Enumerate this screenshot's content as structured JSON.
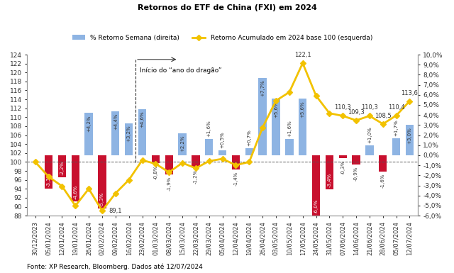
{
  "chart_data": {
    "type": "bar",
    "title": "Retornos do ETF de China (FXI) em 2024",
    "source": "Fonte: XP Research, Bloomberg. Dados até 12/07/2024",
    "annotations": [
      {
        "text": "Início do “ano do dragão”",
        "category": "23/02/2024"
      }
    ],
    "categories": [
      "30/12/2023",
      "05/01/2024",
      "12/01/2024",
      "19/01/2024",
      "26/01/2024",
      "02/02/2024",
      "09/02/2024",
      "16/02/2024",
      "23/02/2024",
      "01/03/2024",
      "08/03/2024",
      "15/03/2024",
      "22/03/2024",
      "29/03/2024",
      "05/04/2024",
      "12/04/2024",
      "19/04/2024",
      "26/04/2024",
      "03/05/2024",
      "10/05/2024",
      "17/05/2024",
      "24/05/2024",
      "31/05/2024",
      "07/06/2024",
      "14/06/2024",
      "21/06/2024",
      "28/06/2024",
      "05/07/2024",
      "12/07/2024"
    ],
    "ylim": [
      88,
      124
    ],
    "yticks": [
      88,
      90,
      92,
      94,
      96,
      98,
      100,
      102,
      104,
      106,
      108,
      110,
      112,
      114,
      116,
      118,
      120,
      122,
      124
    ],
    "y2lim": [
      -6,
      10
    ],
    "y2ticks": [
      {
        "value": -6,
        "label": "-6,0%"
      },
      {
        "value": -5,
        "label": "-5,0%"
      },
      {
        "value": -4,
        "label": "-4,0%"
      },
      {
        "value": -3,
        "label": "-3,0%"
      },
      {
        "value": -2,
        "label": "-2,0%"
      },
      {
        "value": -1,
        "label": "-1,0%"
      },
      {
        "value": 0,
        "label": "0,0%"
      },
      {
        "value": 1,
        "label": "1,0%"
      },
      {
        "value": 2,
        "label": "2,0%"
      },
      {
        "value": 3,
        "label": "3,0%"
      },
      {
        "value": 4,
        "label": "4,0%"
      },
      {
        "value": 5,
        "label": "5,0%"
      },
      {
        "value": 6,
        "label": "6,0%"
      },
      {
        "value": 7,
        "label": "7,0%"
      },
      {
        "value": 8,
        "label": "8,0%"
      },
      {
        "value": 9,
        "label": "9,0%"
      },
      {
        "value": 10,
        "label": "10,0%"
      }
    ],
    "grid": false,
    "legend": "upper center",
    "data_labels": true,
    "series": [
      {
        "name": "% Retorno Semana (direita)",
        "type": "bar",
        "axis": "y2",
        "values": [
          null,
          -3.3,
          -2.2,
          -4.6,
          4.2,
          -5.3,
          4.4,
          3.2,
          4.6,
          -0.8,
          -1.9,
          2.2,
          -1.2,
          1.6,
          0.5,
          -1.4,
          0.7,
          7.7,
          5.6,
          1.6,
          5.6,
          -6.0,
          -3.4,
          -0.3,
          -0.9,
          1.0,
          -1.6,
          1.7,
          3.0
        ],
        "value_labels": [
          null,
          "-3,3%",
          "-2,2%",
          "-4,6%",
          "+4,2%",
          "-5,3%",
          "+4,4%",
          "+3,2%",
          "+4,6%",
          "-0,8%",
          "-1,9%",
          "+2,2%",
          "-1,2%",
          "+1,6%",
          "+0,5%",
          "-1,4%",
          "+0,7%",
          "+7,7%",
          "+5,6%",
          "+1,6%",
          "+5,6%",
          "-6,0%",
          "-3,4%",
          "-0,3%",
          "-0,9%",
          "+1,0%",
          "-1,6%",
          "+1,7%",
          "+3,0%"
        ],
        "colors": [
          "#8eb4e3",
          "#c8102e",
          "#c8102e",
          "#c8102e",
          "#8eb4e3",
          "#c8102e",
          "#8eb4e3",
          "#8eb4e3",
          "#8eb4e3",
          "#c8102e",
          "#c8102e",
          "#8eb4e3",
          "#c8102e",
          "#8eb4e3",
          "#8eb4e3",
          "#c8102e",
          "#8eb4e3",
          "#8eb4e3",
          "#8eb4e3",
          "#8eb4e3",
          "#8eb4e3",
          "#c8102e",
          "#c8102e",
          "#c8102e",
          "#c8102e",
          "#8eb4e3",
          "#c8102e",
          "#8eb4e3",
          "#8eb4e3"
        ]
      },
      {
        "name": "Retorno Acumulado em 2024 base 100 (esquerda)",
        "type": "line",
        "color": "#f2c200",
        "marker": "diamond",
        "line_style": "solid",
        "values": [
          100,
          96.7,
          94.6,
          90.2,
          94.0,
          89.1,
          93.0,
          96.0,
          100.4,
          99.6,
          97.7,
          99.8,
          98.6,
          100.2,
          100.7,
          99.3,
          100.0,
          107.7,
          113.7,
          115.6,
          122.1,
          114.8,
          110.9,
          110.3,
          109.3,
          110.3,
          108.5,
          110.4,
          113.6
        ],
        "value_labels": [
          null,
          null,
          null,
          null,
          null,
          "89,1",
          null,
          null,
          null,
          null,
          null,
          null,
          null,
          null,
          null,
          null,
          null,
          null,
          null,
          null,
          "122,1",
          null,
          null,
          "110,3",
          "109,3",
          "110,3",
          "108,5",
          "110,4",
          "113,6"
        ]
      }
    ]
  }
}
